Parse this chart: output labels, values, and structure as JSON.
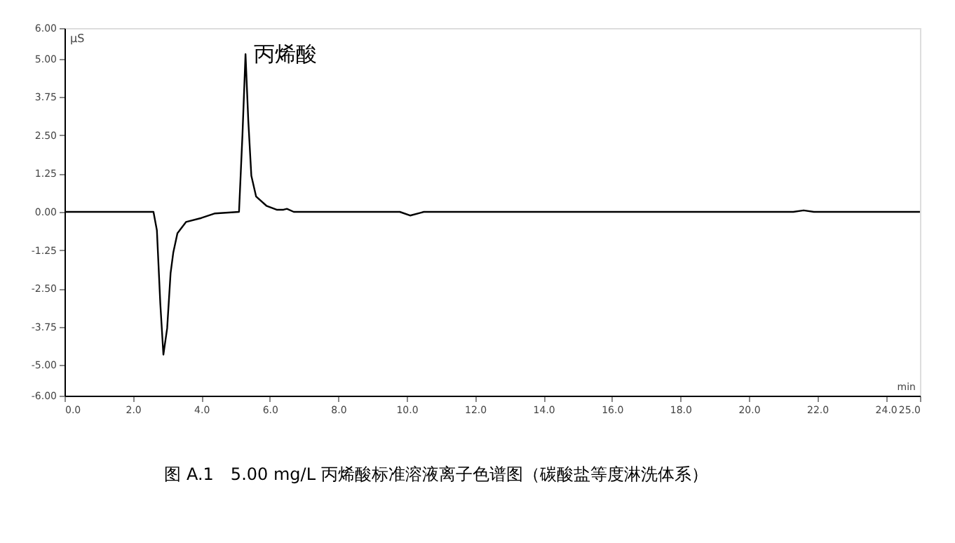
{
  "chart_data": {
    "type": "line",
    "xlabel": "min",
    "ylabel": "µS",
    "x": [
      0,
      2.6,
      2.7,
      2.8,
      2.89,
      3.0,
      3.1,
      3.18,
      3.3,
      3.55,
      4.0,
      4.4,
      5.1,
      5.2,
      5.29,
      5.37,
      5.46,
      5.6,
      5.9,
      6.2,
      6.4,
      6.5,
      6.7,
      9.8,
      10.1,
      10.4,
      10.5,
      21.3,
      21.6,
      21.9,
      25
    ],
    "series": [
      {
        "color": "#000000",
        "values": [
          0,
          0,
          -0.6,
          -3.0,
          -4.66,
          -3.8,
          -2.0,
          -1.32,
          -0.7,
          -0.33,
          -0.2,
          -0.05,
          0,
          2.5,
          5.15,
          3.0,
          1.18,
          0.5,
          0.2,
          0.07,
          0.07,
          0.1,
          0,
          0,
          -0.12,
          -0.03,
          0,
          0,
          0.05,
          0,
          0
        ]
      }
    ],
    "xlim": [
      0,
      25
    ],
    "ylim": [
      -6,
      6
    ],
    "xticks": [
      {
        "value": 0,
        "label": "0.0"
      },
      {
        "value": 2,
        "label": "2.0"
      },
      {
        "value": 4,
        "label": "4.0"
      },
      {
        "value": 6,
        "label": "6.0"
      },
      {
        "value": 8,
        "label": "8.0"
      },
      {
        "value": 10,
        "label": "10.0"
      },
      {
        "value": 12,
        "label": "12.0"
      },
      {
        "value": 14,
        "label": "14.0"
      },
      {
        "value": 16,
        "label": "16.0"
      },
      {
        "value": 18,
        "label": "18.0"
      },
      {
        "value": 20,
        "label": "20.0"
      },
      {
        "value": 22,
        "label": "22.0"
      },
      {
        "value": 24,
        "label": "24.0"
      },
      {
        "value": 25,
        "label": "25.0"
      }
    ],
    "yticks": [
      {
        "value": -6,
        "label": "-6.00"
      },
      {
        "value": -5,
        "label": "-5.00"
      },
      {
        "value": -3.75,
        "label": "-3.75"
      },
      {
        "value": -2.5,
        "label": "-2.50"
      },
      {
        "value": -1.25,
        "label": "-1.25"
      },
      {
        "value": 0,
        "label": "0.00"
      },
      {
        "value": 1.25,
        "label": "1.25"
      },
      {
        "value": 2.5,
        "label": "2.50"
      },
      {
        "value": 3.75,
        "label": "3.75"
      },
      {
        "value": 5,
        "label": "5.00"
      },
      {
        "value": 6,
        "label": "6.00"
      }
    ],
    "grid": false,
    "marker": "none",
    "line_style": "solid",
    "annotations": [
      {
        "text": "丙烯酸",
        "x": 5.29,
        "y": 5.15
      },
      "图 A.1　5.00 mg/L 丙烯酸标准溶液离子色谱图（碳酸盐等度淋洗体系）"
    ]
  }
}
